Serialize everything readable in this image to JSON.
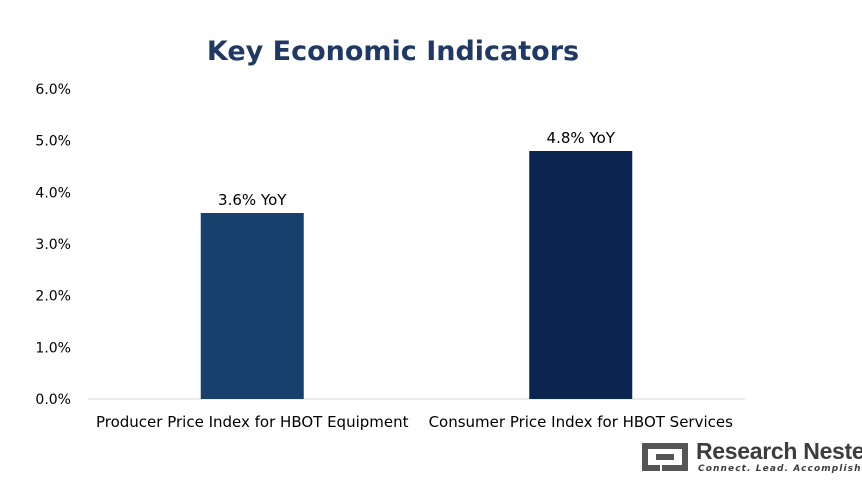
{
  "chart_data": {
    "type": "bar",
    "title": "Key Economic Indicators",
    "categories": [
      "Producer Price Index for HBOT Equipment",
      "Consumer Price Index for HBOT Services"
    ],
    "values": [
      3.6,
      4.8
    ],
    "data_labels": [
      "3.6% YoY",
      "4.8% YoY"
    ],
    "ylim": [
      0,
      6
    ],
    "yticks": [
      "0.0%",
      "1.0%",
      "2.0%",
      "3.0%",
      "4.0%",
      "5.0%",
      "6.0%"
    ],
    "grid": false,
    "bar_colors": [
      "#17406d",
      "#0c2450"
    ]
  },
  "logo": {
    "name": "Research Nester",
    "tagline": "Connect. Lead. Accomplish"
  }
}
